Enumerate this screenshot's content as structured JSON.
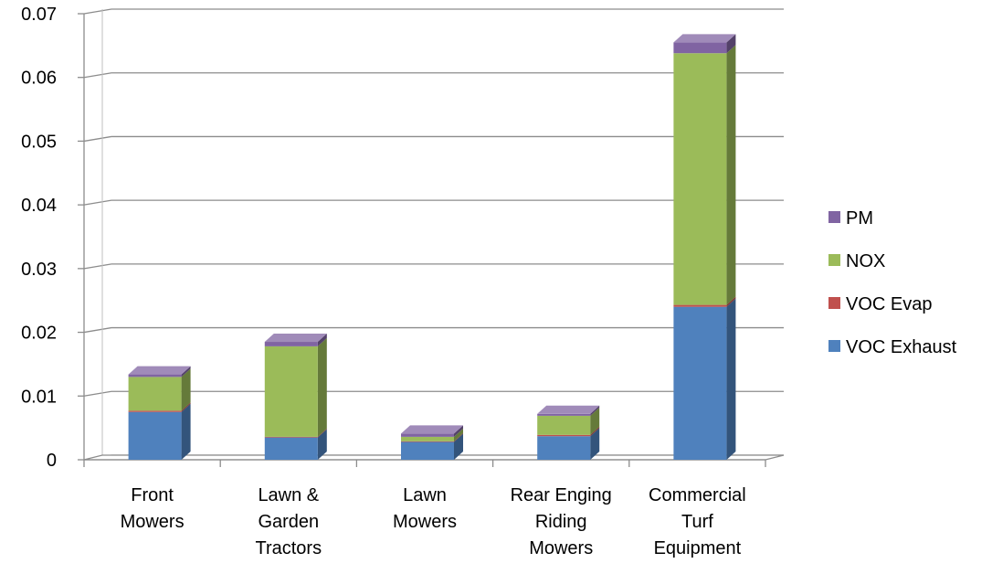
{
  "chart_data": {
    "type": "bar",
    "stacked": true,
    "three_d": true,
    "title": "",
    "xlabel": "",
    "ylabel": "",
    "categories": [
      [
        "Front",
        "Mowers"
      ],
      [
        "Lawn &",
        "Garden",
        "Tractors"
      ],
      [
        "Lawn",
        "Mowers"
      ],
      [
        "Rear Enging",
        "Riding",
        "Mowers"
      ],
      [
        "Commercial",
        "Turf",
        "Equipment"
      ]
    ],
    "series": [
      {
        "name": "VOC Exhaust",
        "color": "#4f81bd",
        "values": [
          0.0075,
          0.0035,
          0.0028,
          0.0037,
          0.024
        ]
      },
      {
        "name": "VOC Evap",
        "color": "#c0504d",
        "values": [
          0.0002,
          0.0001,
          0.0001,
          0.0002,
          0.0003
        ]
      },
      {
        "name": "NOX",
        "color": "#9bbb59",
        "values": [
          0.0053,
          0.0142,
          0.0007,
          0.003,
          0.0395
        ]
      },
      {
        "name": "PM",
        "color": "#8064a2",
        "values": [
          0.0004,
          0.0007,
          0.0005,
          0.0003,
          0.0017
        ]
      }
    ],
    "ylim": [
      0,
      0.07
    ],
    "yticks": [
      "0",
      "0.01",
      "0.02",
      "0.03",
      "0.04",
      "0.05",
      "0.06",
      "0.07"
    ],
    "grid": true,
    "legend_position": "right",
    "legend_order": [
      "PM",
      "NOX",
      "VOC Evap",
      "VOC Exhaust"
    ]
  }
}
